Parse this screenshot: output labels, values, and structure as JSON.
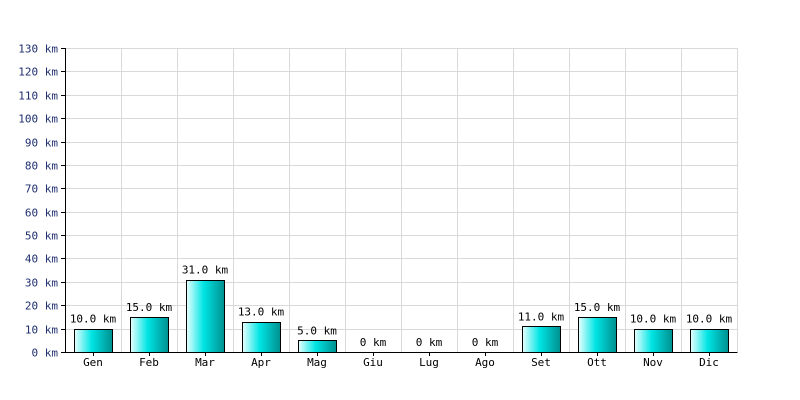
{
  "chart_data": {
    "type": "bar",
    "categories": [
      "Gen",
      "Feb",
      "Mar",
      "Apr",
      "Mag",
      "Giu",
      "Lug",
      "Ago",
      "Set",
      "Ott",
      "Nov",
      "Dic"
    ],
    "values": [
      10.0,
      15.0,
      31.0,
      13.0,
      5.0,
      0,
      0,
      0,
      11.0,
      15.0,
      10.0,
      10.0
    ],
    "data_labels": [
      "10.0 km",
      "15.0 km",
      "31.0 km",
      "13.0 km",
      "5.0 km",
      "0 km",
      "0 km",
      "0 km",
      "11.0 km",
      "15.0 km",
      "10.0 km",
      "10.0 km"
    ],
    "y_ticks": [
      0,
      10,
      20,
      30,
      40,
      50,
      60,
      70,
      80,
      90,
      100,
      110,
      120,
      130
    ],
    "y_tick_labels": [
      "0 km",
      "10 km",
      "20 km",
      "30 km",
      "40 km",
      "50 km",
      "60 km",
      "70 km",
      "80 km",
      "90 km",
      "100 km",
      "110 km",
      "120 km",
      "130 km"
    ],
    "ylim": [
      0,
      130
    ],
    "grid": true,
    "legend": false,
    "title": "",
    "xlabel": "",
    "ylabel": "",
    "colors": {
      "bar_light": "#e8ffff",
      "bar_mid": "#00e5e5",
      "bar_dark": "#008f8f",
      "grid": "#d9d9d9",
      "axis": "#000000",
      "y_text": "#1f2f6f"
    }
  }
}
